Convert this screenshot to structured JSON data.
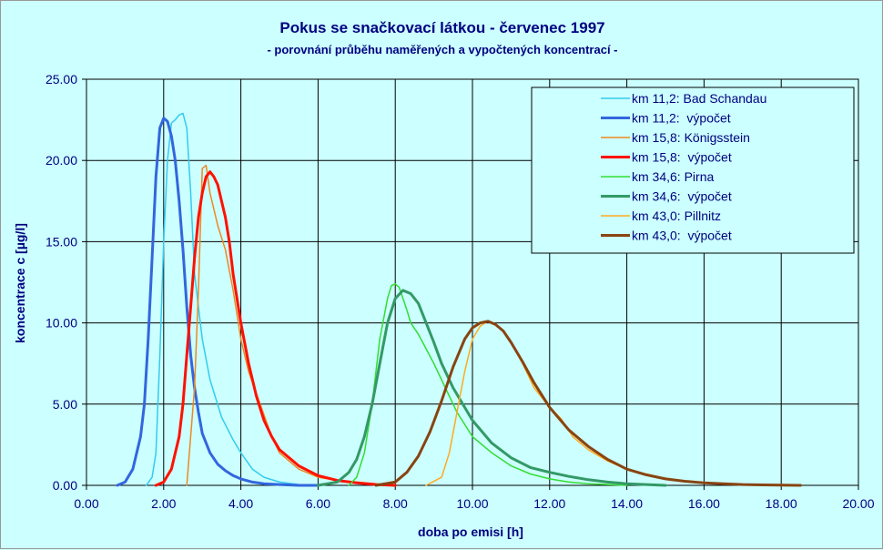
{
  "chart_data": {
    "type": "line",
    "title": "Pokus se snačkovací látkou - červenec 1997",
    "subtitle": "- porovnání průběhu naměřených a vypočtených koncentrací -",
    "xlabel": "doba po emisi [h]",
    "ylabel": "koncentrace c [µg/l]",
    "xlim": [
      0,
      20
    ],
    "ylim": [
      0,
      25
    ],
    "xticks": [
      "0.00",
      "2.00",
      "4.00",
      "6.00",
      "8.00",
      "10.00",
      "12.00",
      "14.00",
      "16.00",
      "18.00",
      "20.00"
    ],
    "yticks": [
      "0.00",
      "5.00",
      "10.00",
      "15.00",
      "20.00",
      "25.00"
    ],
    "grid": true,
    "legend_position": "top-right",
    "series": [
      {
        "name": "km 11,2: Bad Schandau",
        "color": "#33ccee",
        "width": 1.5,
        "x": [
          1.55,
          1.7,
          1.8,
          1.9,
          2.0,
          2.1,
          2.2,
          2.3,
          2.4,
          2.5,
          2.6,
          2.7,
          2.8,
          3.0,
          3.2,
          3.5,
          3.8,
          4.0,
          4.3,
          4.6,
          5.0,
          5.5
        ],
        "y": [
          0,
          0.5,
          2,
          8,
          15,
          20,
          22.3,
          22.5,
          22.8,
          22.9,
          22,
          18,
          13,
          9,
          6.5,
          4.2,
          2.8,
          2.0,
          1.0,
          0.5,
          0.2,
          0.05
        ]
      },
      {
        "name": "km 11,2:  výpočet",
        "color": "#3366dd",
        "width": 3,
        "x": [
          0.8,
          1.0,
          1.2,
          1.4,
          1.5,
          1.6,
          1.7,
          1.8,
          1.9,
          2.0,
          2.1,
          2.2,
          2.3,
          2.4,
          2.5,
          2.6,
          2.7,
          2.8,
          2.9,
          3.0,
          3.2,
          3.4,
          3.6,
          3.8,
          4.0,
          4.3,
          4.6,
          5.0,
          5.5,
          6.0
        ],
        "y": [
          0,
          0.2,
          1,
          3,
          5,
          9,
          14,
          19,
          22,
          22.6,
          22.4,
          21.5,
          20,
          17.5,
          14.5,
          11,
          8,
          6,
          4.5,
          3.2,
          2,
          1.3,
          0.9,
          0.6,
          0.4,
          0.2,
          0.1,
          0.05,
          0,
          0
        ]
      },
      {
        "name": "km 15,8: Königsstein",
        "color": "#ee8822",
        "width": 1.5,
        "x": [
          2.6,
          2.8,
          2.9,
          3.0,
          3.1,
          3.2,
          3.4,
          3.6,
          3.8,
          4.0,
          4.2,
          4.5,
          4.8,
          5.0,
          5.5,
          6.0,
          6.5,
          7.0,
          7.5
        ],
        "y": [
          0,
          6,
          12,
          19.5,
          19.7,
          18,
          16,
          14.5,
          12,
          9,
          7,
          5,
          3,
          2,
          1,
          0.5,
          0.3,
          0.2,
          0.1
        ]
      },
      {
        "name": "km 15,8:  výpočet",
        "color": "#ff1100",
        "width": 3,
        "x": [
          1.8,
          2.0,
          2.2,
          2.4,
          2.5,
          2.6,
          2.7,
          2.8,
          2.9,
          3.0,
          3.1,
          3.2,
          3.3,
          3.4,
          3.5,
          3.6,
          3.7,
          3.8,
          4.0,
          4.2,
          4.4,
          4.6,
          4.8,
          5.0,
          5.5,
          6.0,
          6.5,
          7.0,
          7.5,
          8.0
        ],
        "y": [
          0,
          0.2,
          1,
          3,
          5,
          8,
          11,
          14,
          16.5,
          18,
          19,
          19.3,
          19,
          18.5,
          17.5,
          16.5,
          15,
          13,
          10,
          7.5,
          5.5,
          4,
          3,
          2.2,
          1.2,
          0.6,
          0.3,
          0.15,
          0.05,
          0
        ]
      },
      {
        "name": "km 34,6: Pirna",
        "color": "#33dd33",
        "width": 1.5,
        "x": [
          6.8,
          7.0,
          7.2,
          7.4,
          7.6,
          7.8,
          7.9,
          8.0,
          8.1,
          8.2,
          8.3,
          8.4,
          8.6,
          8.8,
          9.0,
          9.3,
          9.6,
          10.0,
          10.5,
          11.0,
          11.5,
          12.0,
          12.5,
          13.0,
          13.5,
          14.0
        ],
        "y": [
          0,
          0.5,
          2,
          5,
          9,
          11.5,
          12.3,
          12.4,
          12.2,
          11.5,
          10.8,
          10,
          9.3,
          8.4,
          7.5,
          6,
          4.5,
          3,
          2,
          1.2,
          0.7,
          0.4,
          0.2,
          0.1,
          0.05,
          0
        ]
      },
      {
        "name": "km 34,6:  výpočet",
        "color": "#339966",
        "width": 3,
        "x": [
          6.0,
          6.5,
          6.8,
          7.0,
          7.2,
          7.4,
          7.6,
          7.8,
          8.0,
          8.2,
          8.4,
          8.6,
          8.8,
          9.0,
          9.2,
          9.5,
          10.0,
          10.5,
          11.0,
          11.5,
          12.0,
          12.5,
          13.0,
          13.5,
          14.0,
          14.5,
          15.0
        ],
        "y": [
          0,
          0.2,
          0.8,
          1.6,
          3,
          5,
          7.5,
          10,
          11.5,
          12,
          11.8,
          11.2,
          10,
          8.8,
          7.5,
          6,
          4,
          2.6,
          1.7,
          1.1,
          0.8,
          0.55,
          0.35,
          0.2,
          0.1,
          0.05,
          0
        ]
      },
      {
        "name": "km 43,0: Pillnitz",
        "color": "#ffaa22",
        "width": 1.5,
        "x": [
          8.8,
          9.2,
          9.4,
          9.6,
          9.8,
          10.0,
          10.2,
          10.4,
          10.6,
          10.8,
          11.0,
          11.3,
          11.6,
          12.0,
          12.3,
          12.6,
          13.0,
          13.5,
          14.0,
          14.5,
          15.0,
          15.5,
          16.0,
          16.5,
          17.0
        ],
        "y": [
          0,
          0.5,
          2,
          4.5,
          7,
          9,
          9.8,
          10.1,
          9.9,
          9.5,
          8.8,
          7.5,
          6,
          4.8,
          4.1,
          3,
          2.2,
          1.5,
          1.0,
          0.7,
          0.4,
          0.25,
          0.15,
          0.1,
          0.05
        ]
      },
      {
        "name": "km 43,0:  výpočet",
        "color": "#884411",
        "width": 3,
        "x": [
          7.5,
          8.0,
          8.3,
          8.6,
          8.9,
          9.2,
          9.5,
          9.8,
          10.0,
          10.2,
          10.4,
          10.6,
          10.8,
          11.0,
          11.3,
          11.6,
          12.0,
          12.5,
          13.0,
          13.5,
          14.0,
          14.5,
          15.0,
          15.5,
          16.0,
          16.5,
          17.0,
          17.5,
          18.0,
          18.5
        ],
        "y": [
          0,
          0.2,
          0.8,
          1.8,
          3.3,
          5.2,
          7.3,
          9.0,
          9.7,
          10.0,
          10.1,
          9.9,
          9.5,
          8.8,
          7.6,
          6.3,
          4.8,
          3.4,
          2.4,
          1.6,
          1.0,
          0.65,
          0.4,
          0.25,
          0.15,
          0.1,
          0.05,
          0.03,
          0.01,
          0
        ]
      }
    ]
  }
}
